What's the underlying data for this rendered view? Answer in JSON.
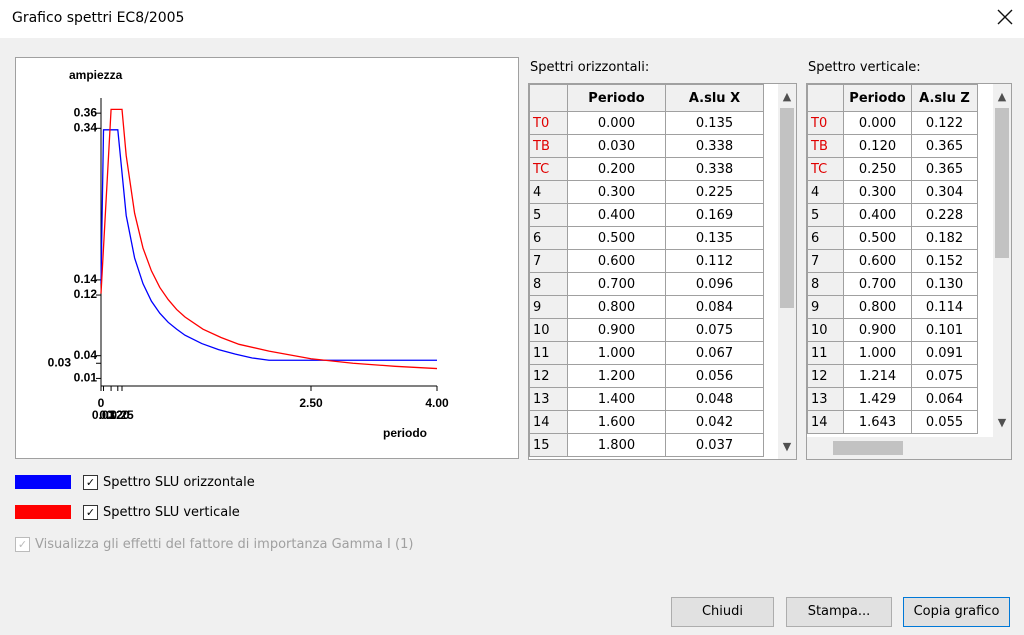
{
  "window": {
    "title": "Grafico spettri EC8/2005"
  },
  "chart_data": {
    "type": "line",
    "y_label": "ampiezza",
    "x_label": "periodo",
    "xlim": [
      0,
      4
    ],
    "xticks": [
      0,
      0.03,
      {
        "value": 0.2,
        "label": "0.20"
      },
      0.12,
      0.25,
      {
        "value": 2.5,
        "label": "2.50"
      },
      {
        "value": 4,
        "label": "4.00"
      }
    ],
    "ylim": [
      0,
      0.38
    ],
    "yticks": [
      0.36,
      0.34,
      0.14,
      0.12,
      0.04,
      0.03,
      0.01
    ],
    "series": [
      {
        "name": "Spettro SLU orizzontale",
        "color": "#0000ff",
        "x": [
          0,
          0.03,
          0.2,
          0.3,
          0.4,
          0.5,
          0.6,
          0.7,
          0.8,
          0.9,
          1.0,
          1.2,
          1.4,
          1.6,
          1.8,
          2.0,
          4.0
        ],
        "values": [
          0.135,
          0.338,
          0.338,
          0.225,
          0.169,
          0.135,
          0.112,
          0.096,
          0.084,
          0.075,
          0.067,
          0.056,
          0.048,
          0.042,
          0.037,
          0.034,
          0.034
        ]
      },
      {
        "name": "Spettro SLU verticale",
        "color": "#ff0000",
        "x": [
          0,
          0.12,
          0.25,
          0.3,
          0.4,
          0.5,
          0.6,
          0.7,
          0.8,
          0.9,
          1.0,
          1.214,
          1.429,
          1.643,
          2.0,
          2.5,
          3.0,
          3.5,
          4.0
        ],
        "values": [
          0.122,
          0.365,
          0.365,
          0.304,
          0.228,
          0.182,
          0.152,
          0.13,
          0.114,
          0.101,
          0.091,
          0.075,
          0.064,
          0.055,
          0.046,
          0.036,
          0.03,
          0.026,
          0.023
        ]
      }
    ]
  },
  "tables": [
    {
      "title": "Spettri orizzontali:",
      "columns": [
        "Periodo",
        "A.slu X"
      ],
      "rows": [
        [
          "T0",
          "0.000",
          "0.135"
        ],
        [
          "TB",
          "0.030",
          "0.338"
        ],
        [
          "TC",
          "0.200",
          "0.338"
        ],
        [
          "4",
          "0.300",
          "0.225"
        ],
        [
          "5",
          "0.400",
          "0.169"
        ],
        [
          "6",
          "0.500",
          "0.135"
        ],
        [
          "7",
          "0.600",
          "0.112"
        ],
        [
          "8",
          "0.700",
          "0.096"
        ],
        [
          "9",
          "0.800",
          "0.084"
        ],
        [
          "10",
          "0.900",
          "0.075"
        ],
        [
          "11",
          "1.000",
          "0.067"
        ],
        [
          "12",
          "1.200",
          "0.056"
        ],
        [
          "13",
          "1.400",
          "0.048"
        ],
        [
          "14",
          "1.600",
          "0.042"
        ],
        [
          "15",
          "1.800",
          "0.037"
        ]
      ]
    },
    {
      "title": "Spettro verticale:",
      "columns": [
        "Periodo",
        "A.slu Z"
      ],
      "rows": [
        [
          "T0",
          "0.000",
          "0.122"
        ],
        [
          "TB",
          "0.120",
          "0.365"
        ],
        [
          "TC",
          "0.250",
          "0.365"
        ],
        [
          "4",
          "0.300",
          "0.304"
        ],
        [
          "5",
          "0.400",
          "0.228"
        ],
        [
          "6",
          "0.500",
          "0.182"
        ],
        [
          "7",
          "0.600",
          "0.152"
        ],
        [
          "8",
          "0.700",
          "0.130"
        ],
        [
          "9",
          "0.800",
          "0.114"
        ],
        [
          "10",
          "0.900",
          "0.101"
        ],
        [
          "11",
          "1.000",
          "0.091"
        ],
        [
          "12",
          "1.214",
          "0.075"
        ],
        [
          "13",
          "1.429",
          "0.064"
        ],
        [
          "14",
          "1.643",
          "0.055"
        ]
      ]
    }
  ],
  "options": {
    "importance_label": "Visualizza gli effetti del fattore di importanza Gamma I (1)"
  },
  "buttons": [
    "Chiudi",
    "Stampa...",
    "Copia grafico"
  ]
}
